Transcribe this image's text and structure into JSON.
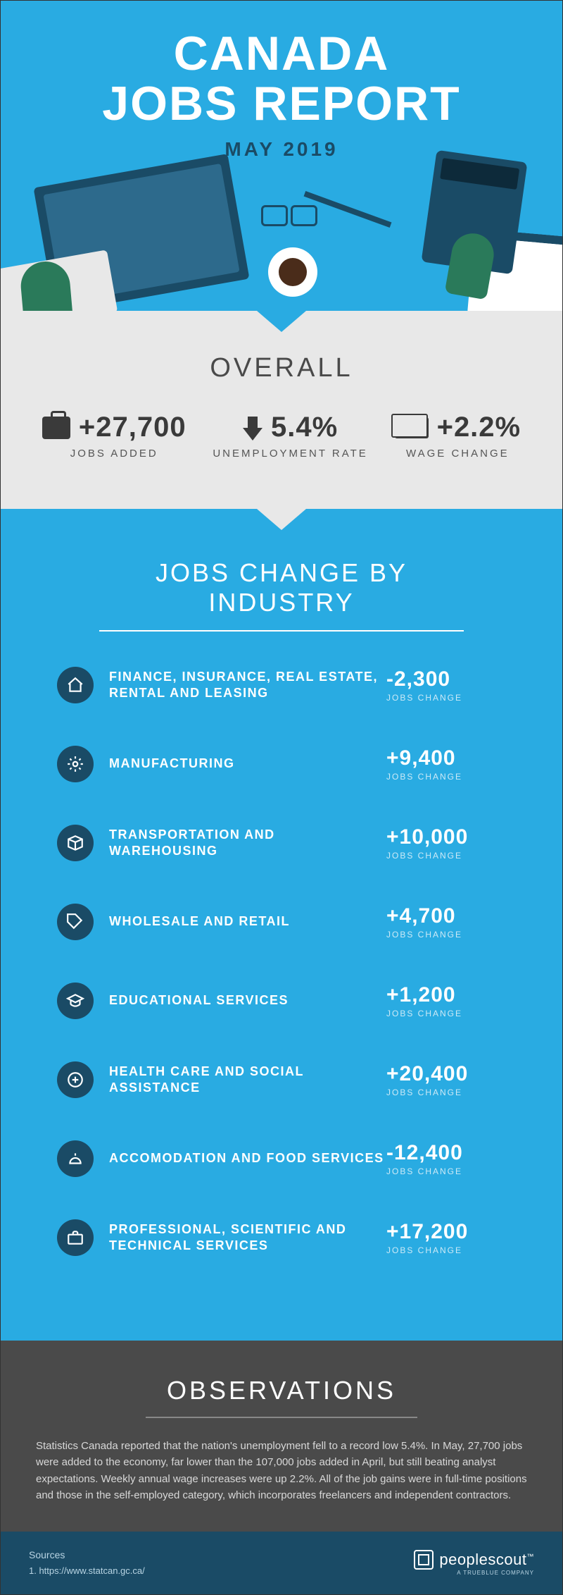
{
  "colors": {
    "primary_blue": "#29abe2",
    "dark_blue": "#1a4b66",
    "gray_bg": "#e8e8e8",
    "dark_gray": "#4a4a4a",
    "text_dark": "#3a3a3a",
    "white": "#ffffff"
  },
  "header": {
    "title_line1": "CANADA",
    "title_line2": "JOBS REPORT",
    "subtitle": "MAY 2019"
  },
  "overall": {
    "heading": "OVERALL",
    "stats": [
      {
        "icon": "briefcase",
        "value": "+27,700",
        "label": "JOBS ADDED"
      },
      {
        "icon": "arrow-down",
        "value": "5.4%",
        "label": "UNEMPLOYMENT RATE"
      },
      {
        "icon": "cash",
        "value": "+2.2%",
        "label": "WAGE CHANGE"
      }
    ]
  },
  "industry": {
    "heading": "JOBS CHANGE BY INDUSTRY",
    "sublabel": "JOBS CHANGE",
    "rows": [
      {
        "icon": "house",
        "label": "FINANCE, INSURANCE, REAL ESTATE, RENTAL AND LEASING",
        "value": "-2,300"
      },
      {
        "icon": "gear",
        "label": "MANUFACTURING",
        "value": "+9,400"
      },
      {
        "icon": "box",
        "label": "TRANSPORTATION AND WAREHOUSING",
        "value": "+10,000"
      },
      {
        "icon": "tag",
        "label": "WHOLESALE AND RETAIL",
        "value": "+4,700"
      },
      {
        "icon": "gradcap",
        "label": "EDUCATIONAL SERVICES",
        "value": "+1,200"
      },
      {
        "icon": "medical",
        "label": "HEALTH CARE AND SOCIAL ASSISTANCE",
        "value": "+20,400"
      },
      {
        "icon": "dish",
        "label": "ACCOMODATION AND FOOD SERVICES",
        "value": "-12,400"
      },
      {
        "icon": "case",
        "label": "PROFESSIONAL, SCIENTIFIC AND TECHNICAL SERVICES",
        "value": "+17,200"
      }
    ]
  },
  "observations": {
    "heading": "OBSERVATIONS",
    "body": "Statistics Canada reported that the nation's unemployment fell to a record low 5.4%. In May, 27,700 jobs were added to the economy, far lower than the 107,000 jobs added in April, but still beating analyst expectations. Weekly annual wage increases were up 2.2%. All of the job gains were in full-time positions and those in the self-employed category, which incorporates freelancers and independent contractors."
  },
  "footer": {
    "sources_label": "Sources",
    "source1": "1. https://www.statcan.gc.ca/",
    "brand": "peoplescout",
    "brand_sub": "A TRUEBLUE COMPANY"
  }
}
